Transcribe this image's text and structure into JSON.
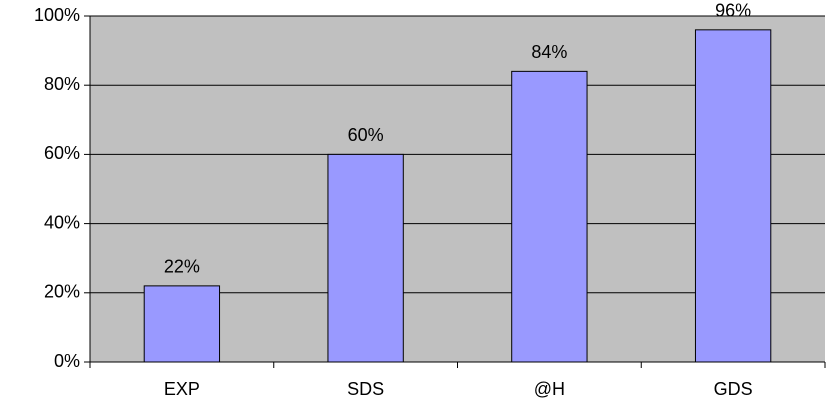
{
  "chart_data": {
    "type": "bar",
    "categories": [
      "EXP",
      "SDS",
      "@H",
      "GDS"
    ],
    "values": [
      22,
      60,
      84,
      96
    ],
    "value_labels": [
      "22%",
      "60%",
      "84%",
      "96%"
    ],
    "color": "#9999ff",
    "ylim": [
      0,
      100
    ],
    "yticks": [
      {
        "value": 0,
        "label": "0%"
      },
      {
        "value": 20,
        "label": "20%"
      },
      {
        "value": 40,
        "label": "40%"
      },
      {
        "value": 60,
        "label": "60%"
      },
      {
        "value": 80,
        "label": "80%"
      },
      {
        "value": 100,
        "label": "100%"
      }
    ],
    "grid": true
  }
}
